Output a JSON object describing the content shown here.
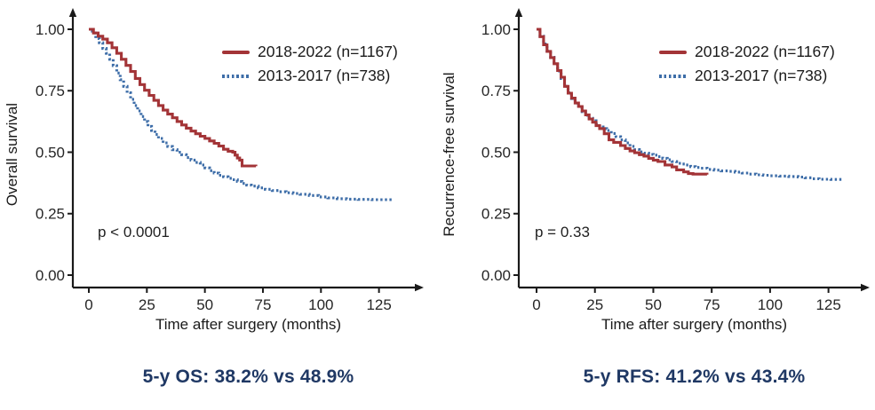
{
  "figure": {
    "background": "#ffffff"
  },
  "colors": {
    "axis": "#1a1a1a",
    "tick_text": "#262626",
    "red": "#A33437",
    "blue": "#3D6DA8",
    "caption": "#1F3864"
  },
  "chart_data": [
    {
      "type": "line",
      "subtype": "kaplan-meier-step",
      "ylabel": "Overall survival",
      "xlabel": "Time after surgery (months)",
      "p_label": "p < 0.0001",
      "caption": "5-y OS: 38.2% vs 48.9%",
      "xlim": [
        0,
        135
      ],
      "ylim": [
        0,
        1.0
      ],
      "grid": false,
      "legend_position": "upper-right-inside",
      "x_ticks": [
        {
          "label": "0",
          "value": 0
        },
        {
          "label": "25",
          "value": 25
        },
        {
          "label": "50",
          "value": 50
        },
        {
          "label": "75",
          "value": 75
        },
        {
          "label": "100",
          "value": 100
        },
        {
          "label": "125",
          "value": 125
        }
      ],
      "y_ticks": [
        {
          "label": "1.00",
          "value": 1.0
        },
        {
          "label": "0.75",
          "value": 0.75
        },
        {
          "label": "0.50",
          "value": 0.5
        },
        {
          "label": "0.25",
          "value": 0.25
        },
        {
          "label": "0.00",
          "value": 0.0
        }
      ],
      "series": [
        {
          "name": "2018-2022 (n=1167)",
          "color": "#A33437",
          "style": "solid",
          "points": [
            [
              0,
              1.0
            ],
            [
              2,
              0.985
            ],
            [
              4,
              0.972
            ],
            [
              6,
              0.96
            ],
            [
              8,
              0.945
            ],
            [
              10,
              0.925
            ],
            [
              12,
              0.902
            ],
            [
              14,
              0.878
            ],
            [
              16,
              0.853
            ],
            [
              18,
              0.828
            ],
            [
              20,
              0.8
            ],
            [
              22,
              0.775
            ],
            [
              24,
              0.752
            ],
            [
              26,
              0.731
            ],
            [
              28,
              0.711
            ],
            [
              30,
              0.69
            ],
            [
              32,
              0.671
            ],
            [
              34,
              0.655
            ],
            [
              36,
              0.64
            ],
            [
              38,
              0.625
            ],
            [
              40,
              0.611
            ],
            [
              42,
              0.598
            ],
            [
              44,
              0.586
            ],
            [
              46,
              0.575
            ],
            [
              48,
              0.565
            ],
            [
              50,
              0.556
            ],
            [
              52,
              0.546
            ],
            [
              54,
              0.536
            ],
            [
              56,
              0.525
            ],
            [
              58,
              0.512
            ],
            [
              60,
              0.504
            ],
            [
              62,
              0.5
            ],
            [
              63,
              0.488
            ],
            [
              64,
              0.476
            ],
            [
              65,
              0.468
            ],
            [
              66,
              0.444
            ],
            [
              72,
              0.443
            ]
          ]
        },
        {
          "name": "2013-2017 (n=738)",
          "color": "#3D6DA8",
          "style": "dotted",
          "points": [
            [
              0,
              1.0
            ],
            [
              1.5,
              0.985
            ],
            [
              3,
              0.962
            ],
            [
              4.5,
              0.945
            ],
            [
              6,
              0.922
            ],
            [
              7.5,
              0.902
            ],
            [
              9,
              0.878
            ],
            [
              10.5,
              0.852
            ],
            [
              12,
              0.822
            ],
            [
              13.5,
              0.795
            ],
            [
              15,
              0.768
            ],
            [
              16.5,
              0.742
            ],
            [
              18,
              0.715
            ],
            [
              19.5,
              0.69
            ],
            [
              21,
              0.668
            ],
            [
              22.5,
              0.645
            ],
            [
              24,
              0.625
            ],
            [
              25.5,
              0.605
            ],
            [
              27,
              0.588
            ],
            [
              28.5,
              0.572
            ],
            [
              30,
              0.556
            ],
            [
              32,
              0.538
            ],
            [
              34,
              0.523
            ],
            [
              36,
              0.51
            ],
            [
              38,
              0.5
            ],
            [
              40,
              0.49
            ],
            [
              42,
              0.478
            ],
            [
              44,
              0.468
            ],
            [
              46,
              0.458
            ],
            [
              48,
              0.448
            ],
            [
              50,
              0.436
            ],
            [
              52,
              0.425
            ],
            [
              54,
              0.415
            ],
            [
              56,
              0.406
            ],
            [
              58,
              0.4
            ],
            [
              60,
              0.394
            ],
            [
              62,
              0.388
            ],
            [
              64,
              0.381
            ],
            [
              66,
              0.373
            ],
            [
              68,
              0.366
            ],
            [
              70,
              0.362
            ],
            [
              73,
              0.355
            ],
            [
              76,
              0.349
            ],
            [
              79,
              0.344
            ],
            [
              82,
              0.339
            ],
            [
              85,
              0.335
            ],
            [
              88,
              0.332
            ],
            [
              91,
              0.329
            ],
            [
              95,
              0.324
            ],
            [
              99,
              0.318
            ],
            [
              103,
              0.314
            ],
            [
              107,
              0.311
            ],
            [
              111,
              0.309
            ],
            [
              116,
              0.308
            ],
            [
              122,
              0.307
            ],
            [
              131,
              0.307
            ]
          ]
        }
      ]
    },
    {
      "type": "line",
      "subtype": "kaplan-meier-step",
      "ylabel": "Recurrence-free survival",
      "xlabel": "Time after surgery (months)",
      "p_label": "p = 0.33",
      "caption": "5-y RFS: 41.2% vs 43.4%",
      "xlim": [
        0,
        135
      ],
      "ylim": [
        0,
        1.0
      ],
      "grid": false,
      "legend_position": "upper-right-inside",
      "x_ticks": [
        {
          "label": "0",
          "value": 0
        },
        {
          "label": "25",
          "value": 25
        },
        {
          "label": "50",
          "value": 50
        },
        {
          "label": "75",
          "value": 75
        },
        {
          "label": "100",
          "value": 100
        },
        {
          "label": "125",
          "value": 125
        }
      ],
      "y_ticks": [
        {
          "label": "1.00",
          "value": 1.0
        },
        {
          "label": "0.75",
          "value": 0.75
        },
        {
          "label": "0.50",
          "value": 0.5
        },
        {
          "label": "0.25",
          "value": 0.25
        },
        {
          "label": "0.00",
          "value": 0.0
        }
      ],
      "series": [
        {
          "name": "2018-2022 (n=1167)",
          "color": "#A33437",
          "style": "solid",
          "points": [
            [
              0,
              1.0
            ],
            [
              1.5,
              0.97
            ],
            [
              3,
              0.937
            ],
            [
              4.5,
              0.91
            ],
            [
              6,
              0.885
            ],
            [
              7.5,
              0.86
            ],
            [
              9,
              0.832
            ],
            [
              10.5,
              0.805
            ],
            [
              12,
              0.768
            ],
            [
              13.5,
              0.74
            ],
            [
              15,
              0.72
            ],
            [
              16.5,
              0.7
            ],
            [
              18,
              0.686
            ],
            [
              19.5,
              0.668
            ],
            [
              21,
              0.652
            ],
            [
              22.5,
              0.635
            ],
            [
              24,
              0.622
            ],
            [
              25.5,
              0.608
            ],
            [
              27,
              0.596
            ],
            [
              29,
              0.575
            ],
            [
              31,
              0.55
            ],
            [
              33,
              0.54
            ],
            [
              36,
              0.527
            ],
            [
              38,
              0.515
            ],
            [
              40,
              0.505
            ],
            [
              42,
              0.498
            ],
            [
              44,
              0.49
            ],
            [
              46,
              0.484
            ],
            [
              48,
              0.475
            ],
            [
              50,
              0.468
            ],
            [
              52,
              0.462
            ],
            [
              55,
              0.448
            ],
            [
              58,
              0.44
            ],
            [
              60,
              0.428
            ],
            [
              63,
              0.42
            ],
            [
              65,
              0.413
            ],
            [
              67,
              0.411
            ],
            [
              73,
              0.409
            ]
          ]
        },
        {
          "name": "2013-2017 (n=738)",
          "color": "#3D6DA8",
          "style": "dotted",
          "points": [
            [
              0,
              1.0
            ],
            [
              1.5,
              0.972
            ],
            [
              3,
              0.94
            ],
            [
              4.5,
              0.912
            ],
            [
              6,
              0.886
            ],
            [
              7.5,
              0.858
            ],
            [
              9,
              0.83
            ],
            [
              10.5,
              0.8
            ],
            [
              12,
              0.768
            ],
            [
              13.5,
              0.742
            ],
            [
              15,
              0.718
            ],
            [
              16.5,
              0.7
            ],
            [
              18,
              0.682
            ],
            [
              19.5,
              0.665
            ],
            [
              21,
              0.65
            ],
            [
              22.5,
              0.638
            ],
            [
              24,
              0.628
            ],
            [
              25.5,
              0.614
            ],
            [
              27,
              0.603
            ],
            [
              28.5,
              0.596
            ],
            [
              30,
              0.588
            ],
            [
              32,
              0.576
            ],
            [
              34,
              0.563
            ],
            [
              36,
              0.55
            ],
            [
              38,
              0.538
            ],
            [
              40,
              0.524
            ],
            [
              42,
              0.511
            ],
            [
              44,
              0.501
            ],
            [
              46,
              0.496
            ],
            [
              48,
              0.491
            ],
            [
              50,
              0.488
            ],
            [
              52,
              0.482
            ],
            [
              54,
              0.475
            ],
            [
              56,
              0.469
            ],
            [
              58,
              0.462
            ],
            [
              60,
              0.455
            ],
            [
              62,
              0.452
            ],
            [
              64,
              0.448
            ],
            [
              66,
              0.441
            ],
            [
              68,
              0.438
            ],
            [
              70,
              0.435
            ],
            [
              73,
              0.43
            ],
            [
              76,
              0.427
            ],
            [
              79,
              0.424
            ],
            [
              82,
              0.422
            ],
            [
              85,
              0.419
            ],
            [
              88,
              0.415
            ],
            [
              91,
              0.411
            ],
            [
              94,
              0.408
            ],
            [
              97,
              0.406
            ],
            [
              100,
              0.404
            ],
            [
              104,
              0.403
            ],
            [
              108,
              0.401
            ],
            [
              112,
              0.399
            ],
            [
              115,
              0.396
            ],
            [
              118,
              0.392
            ],
            [
              121,
              0.39
            ],
            [
              126,
              0.389
            ],
            [
              131,
              0.388
            ]
          ]
        }
      ]
    }
  ]
}
